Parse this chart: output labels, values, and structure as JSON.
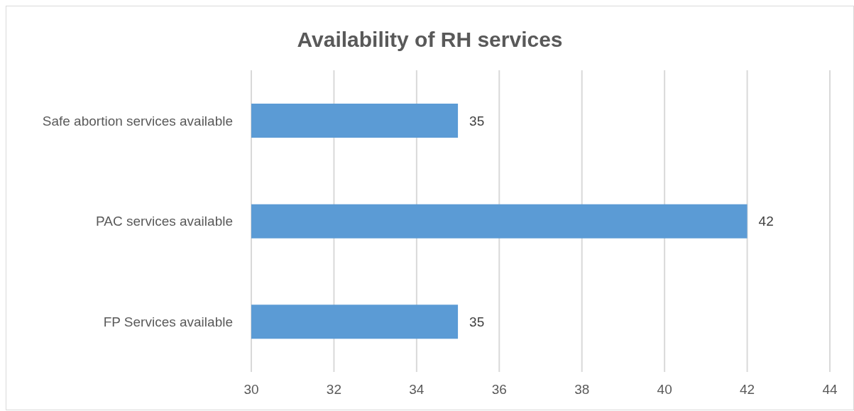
{
  "chart_data": {
    "type": "bar",
    "orientation": "horizontal",
    "title": "Availability of RH services",
    "categories": [
      "Safe abortion services available",
      "PAC services available",
      "FP Services available"
    ],
    "values": [
      35,
      42,
      35
    ],
    "color": "#5b9bd5",
    "xlim": [
      30,
      44
    ],
    "xticks": [
      30,
      32,
      34,
      36,
      38,
      40,
      42,
      44
    ],
    "grid": "x",
    "data_labels": true
  }
}
